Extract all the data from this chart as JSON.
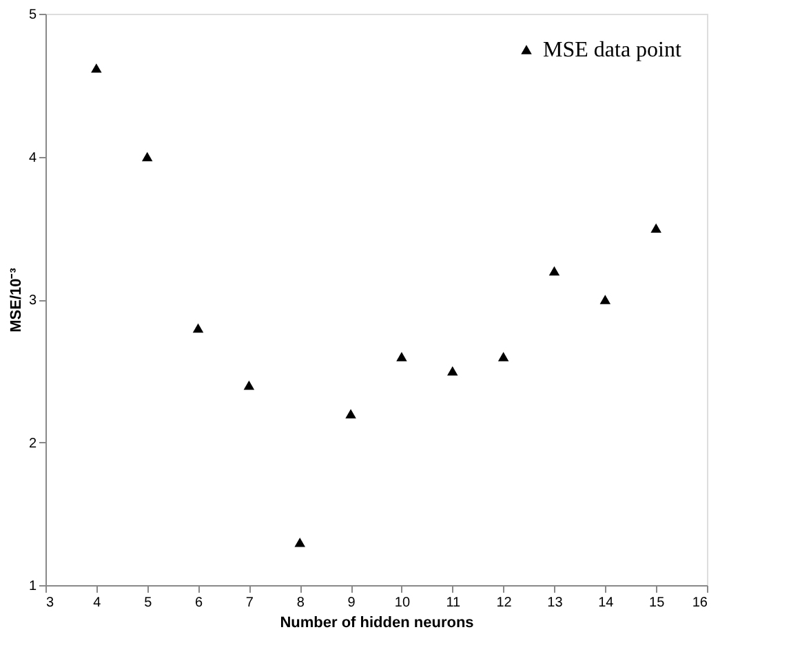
{
  "chart_data": {
    "type": "scatter",
    "xlabel": "Number of hidden neurons",
    "ylabel": "MSE/10⁻³",
    "x": [
      4,
      5,
      6,
      7,
      8,
      9,
      10,
      11,
      12,
      13,
      14,
      15
    ],
    "series": [
      {
        "name": "MSE data point",
        "color": "#000000",
        "values": [
          4.62,
          4.0,
          2.8,
          2.4,
          1.3,
          2.2,
          2.6,
          2.5,
          2.6,
          3.2,
          3.0,
          3.5
        ]
      }
    ],
    "xlim": [
      3,
      16
    ],
    "xticks": [
      3,
      4,
      5,
      6,
      7,
      8,
      9,
      10,
      11,
      12,
      13,
      14,
      15,
      16
    ],
    "ylim": [
      1,
      5
    ],
    "yticks": [
      1,
      2,
      3,
      4,
      5
    ],
    "marker": "triangle",
    "legend": "top right",
    "grid": false
  }
}
